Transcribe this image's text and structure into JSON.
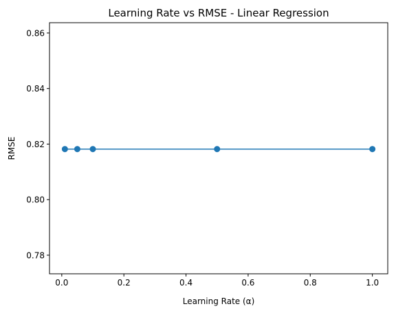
{
  "chart_data": {
    "type": "line",
    "title": "Learning Rate vs RMSE - Linear Regression",
    "xlabel": "Learning Rate (α)",
    "ylabel": "RMSE",
    "x": [
      0.01,
      0.05,
      0.1,
      0.5,
      1.0
    ],
    "series": [
      {
        "values": [
          0.8182,
          0.8182,
          0.8182,
          0.8182,
          0.8182
        ]
      }
    ],
    "xlim": [
      -0.0395,
      1.0495
    ],
    "ylim": [
      0.7733,
      0.8637
    ],
    "xticks": [
      0.0,
      0.2,
      0.4,
      0.6,
      0.8,
      1.0
    ],
    "xtick_labels": [
      "0.0",
      "0.2",
      "0.4",
      "0.6",
      "0.8",
      "1.0"
    ],
    "yticks": [
      0.78,
      0.8,
      0.82,
      0.84,
      0.86
    ],
    "ytick_labels": [
      "0.78",
      "0.80",
      "0.82",
      "0.84",
      "0.86"
    ],
    "grid": false,
    "marker": "circle",
    "colors": {
      "series": "#1f77b4",
      "axes": "#000000",
      "background": "#ffffff"
    }
  }
}
